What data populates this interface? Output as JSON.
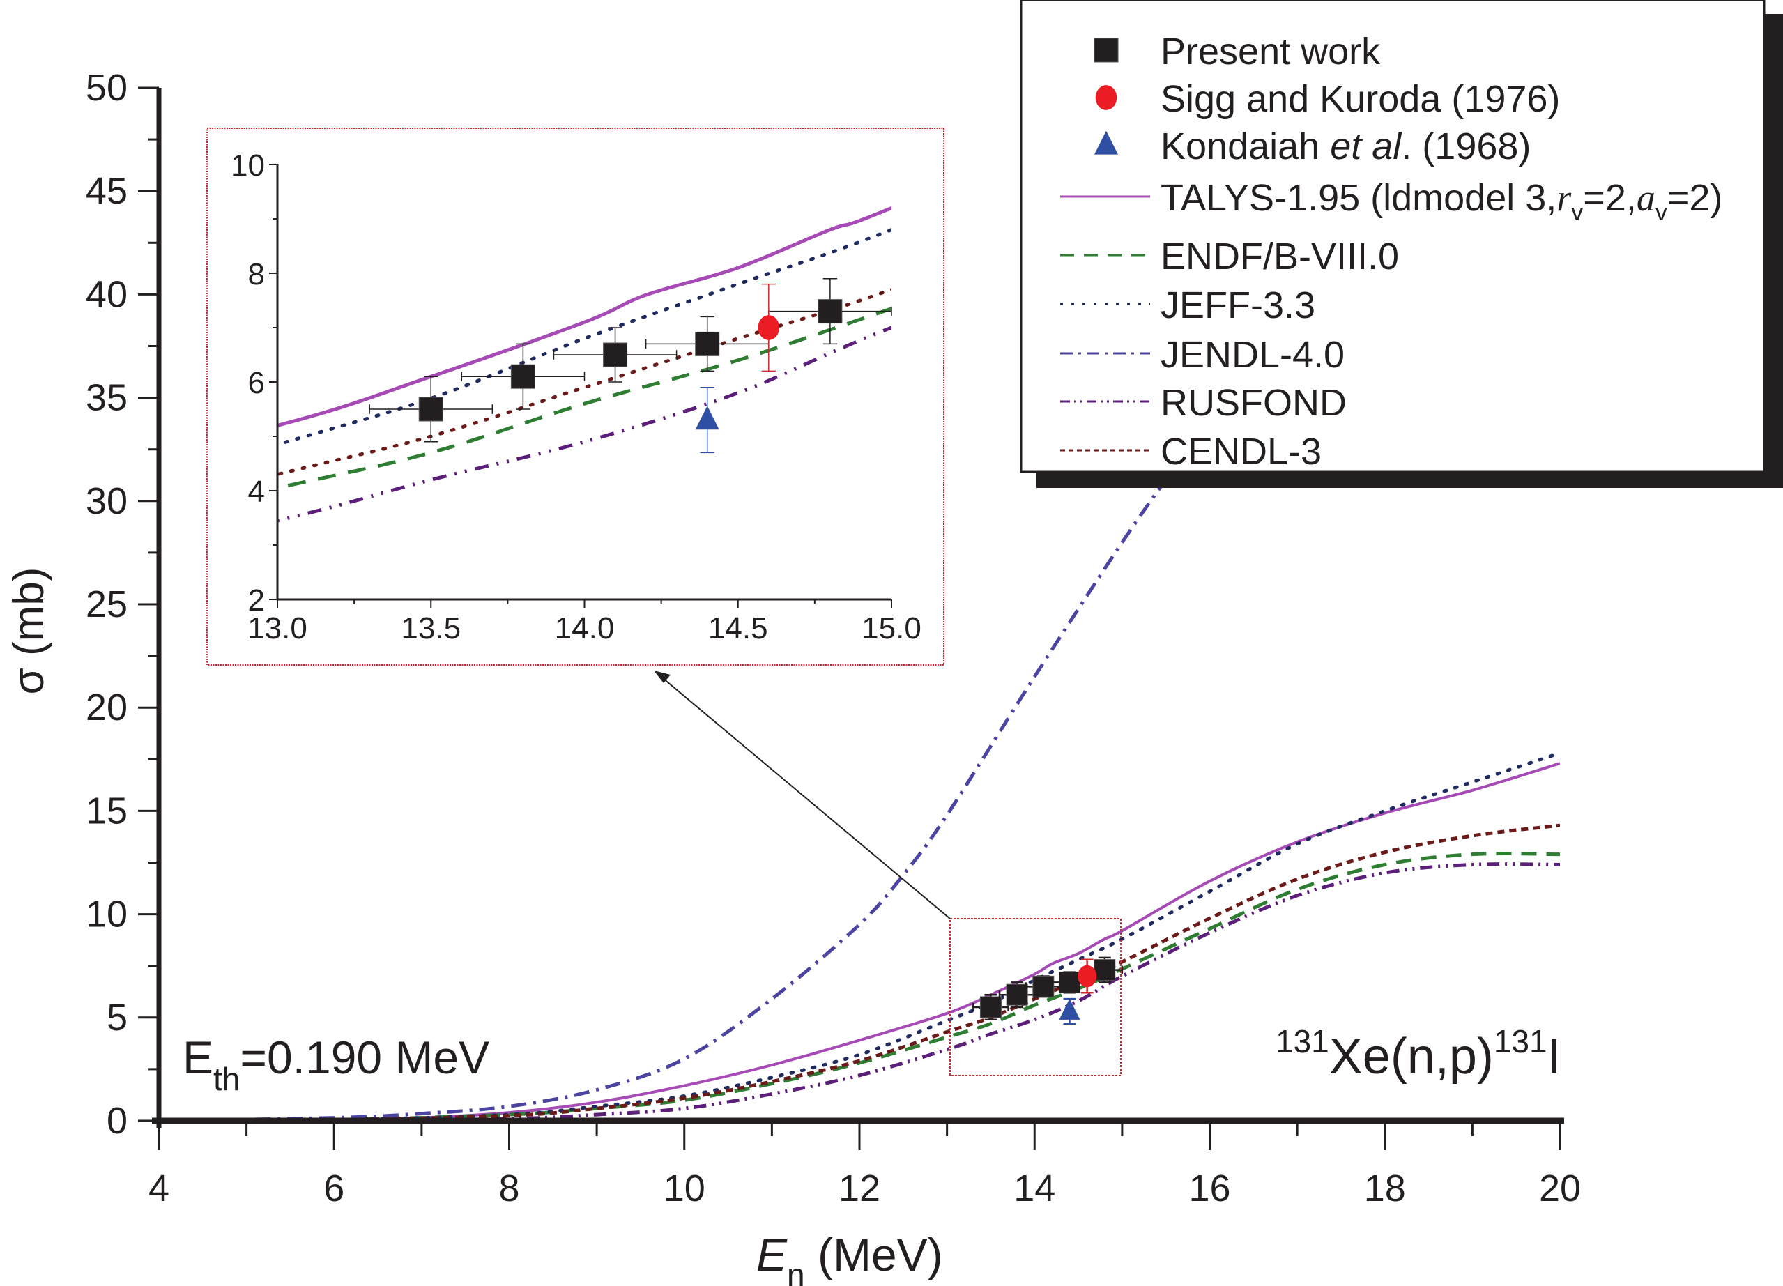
{
  "chart_data": {
    "type": "line",
    "title": "",
    "reaction_label": {
      "pre_sup": "131",
      "main": "Xe(n,p)",
      "post_sup": "131",
      "post": "I"
    },
    "threshold_label": {
      "main": "E",
      "sub": "th",
      "rest": "=0.190 MeV"
    },
    "xlabel": {
      "main": "E",
      "sub": "n",
      "rest": " (MeV)"
    },
    "ylabel": "σ (mb)",
    "xlim": [
      4,
      20
    ],
    "ylim": [
      0,
      50
    ],
    "xticks": [
      "4",
      "6",
      "8",
      "10",
      "12",
      "14",
      "16",
      "18",
      "20"
    ],
    "yticks": [
      "0",
      "5",
      "10",
      "15",
      "20",
      "25",
      "30",
      "35",
      "40",
      "45",
      "50"
    ],
    "grid": false,
    "legend_position": "top-right",
    "legend": [
      {
        "label": "Present work",
        "marker": "square",
        "color": "#231f20"
      },
      {
        "label": "Sigg and Kuroda (1976)",
        "marker": "circle",
        "color": "#ec1c24"
      },
      {
        "label_parts": [
          "Kondaiah ",
          "et al",
          ". (1968)"
        ],
        "label": "Kondaiah et al. (1968)",
        "marker": "triangle",
        "color": "#2e4fa3"
      },
      {
        "label": "TALYS-1.95 (ldmodel 3,rv=2,av=2)",
        "label_parts": [
          "TALYS-1.95 (ldmodel 3,",
          "r",
          "v",
          "=2,",
          "a",
          "v",
          "=2)"
        ],
        "line": "solid",
        "color": "#a64ab5"
      },
      {
        "label": "ENDF/B-VIII.0",
        "line": "dash",
        "color": "#2e7d32"
      },
      {
        "label": "JEFF-3.3",
        "line": "dot",
        "color": "#1f2a5e"
      },
      {
        "label": "JENDL-4.0",
        "line": "dash-dot",
        "color": "#4b44a0"
      },
      {
        "label": "RUSFOND",
        "line": "dash-dot-dot",
        "color": "#5b1f7a"
      },
      {
        "label": "CENDL-3",
        "line": "short-dash",
        "color": "#6b1a1a"
      }
    ],
    "series": [
      {
        "name": "TALYS-1.95",
        "style": "solid",
        "color": "#a64ab5",
        "x": [
          4,
          6,
          7,
          8,
          9,
          10,
          11,
          12,
          13,
          13.5,
          14,
          14.2,
          14.5,
          14.8,
          15,
          16,
          17,
          18,
          19,
          20
        ],
        "y": [
          0,
          0.05,
          0.15,
          0.4,
          0.9,
          1.7,
          2.7,
          3.9,
          5.2,
          6.1,
          7.1,
          7.6,
          8.1,
          8.8,
          9.2,
          11.6,
          13.5,
          14.9,
          16.0,
          17.3
        ]
      },
      {
        "name": "ENDF/B-VIII.0",
        "style": "dash",
        "color": "#2e7d32",
        "x": [
          4,
          6,
          8,
          9,
          10,
          11,
          12,
          13,
          13.5,
          14,
          14.5,
          15,
          16,
          17,
          18,
          19,
          20
        ],
        "y": [
          0,
          0.05,
          0.3,
          0.6,
          1.0,
          1.8,
          2.8,
          4.05,
          4.7,
          5.6,
          6.4,
          7.35,
          9.3,
          11.2,
          12.4,
          12.9,
          12.9
        ]
      },
      {
        "name": "JEFF-3.3",
        "style": "dot",
        "color": "#1f2a5e",
        "x": [
          4,
          6,
          8,
          9,
          10,
          11,
          12,
          13,
          13.5,
          14,
          14.5,
          15,
          16,
          17,
          18,
          19,
          20
        ],
        "y": [
          0,
          0.05,
          0.3,
          0.7,
          1.2,
          2.1,
          3.2,
          4.85,
          5.7,
          6.8,
          7.8,
          8.8,
          11.1,
          13.4,
          15.0,
          16.4,
          17.8
        ]
      },
      {
        "name": "JENDL-4.0",
        "style": "dash-dot",
        "color": "#4b44a0",
        "x": [
          4,
          6,
          7,
          8,
          9,
          10,
          11,
          12,
          12.5,
          13,
          14,
          15,
          15.56
        ],
        "y": [
          0,
          0.15,
          0.35,
          0.7,
          1.5,
          3.0,
          5.9,
          9.5,
          11.9,
          14.8,
          21.5,
          28.0,
          31.4
        ]
      },
      {
        "name": "RUSFOND",
        "style": "dash-dot-dot",
        "color": "#5b1f7a",
        "x": [
          4,
          6,
          8,
          9,
          10,
          11,
          12,
          13,
          13.5,
          14,
          14.5,
          15,
          16,
          17,
          18,
          19,
          20
        ],
        "y": [
          0,
          0.02,
          0.1,
          0.3,
          0.6,
          1.3,
          2.2,
          3.45,
          4.2,
          4.9,
          5.8,
          7.0,
          9.1,
          10.9,
          12.0,
          12.4,
          12.4
        ]
      },
      {
        "name": "CENDL-3",
        "style": "short-dash",
        "color": "#6b1a1a",
        "x": [
          4,
          6,
          8,
          9,
          10,
          11,
          12,
          13,
          13.5,
          14,
          14.5,
          15,
          16,
          17,
          18,
          19,
          20
        ],
        "y": [
          0,
          0.05,
          0.25,
          0.6,
          1.1,
          1.9,
          2.9,
          4.3,
          5.0,
          5.9,
          6.8,
          7.7,
          9.8,
          11.7,
          13.0,
          13.8,
          14.3
        ]
      }
    ],
    "points": [
      {
        "name": "Present work",
        "marker": "square",
        "color": "#231f20",
        "data": [
          {
            "x": 13.5,
            "y": 5.5,
            "yerr": 0.6,
            "xerr": 0.2
          },
          {
            "x": 13.8,
            "y": 6.1,
            "yerr": 0.6,
            "xerr": 0.2
          },
          {
            "x": 14.1,
            "y": 6.5,
            "yerr": 0.5,
            "xerr": 0.2
          },
          {
            "x": 14.4,
            "y": 6.7,
            "yerr": 0.5,
            "xerr": 0.2
          },
          {
            "x": 14.8,
            "y": 7.3,
            "yerr": 0.6,
            "xerr": 0.2
          }
        ]
      },
      {
        "name": "Sigg and Kuroda (1976)",
        "marker": "circle",
        "color": "#ec1c24",
        "data": [
          {
            "x": 14.6,
            "y": 7.0,
            "yerr": 0.8,
            "xerr": 0
          }
        ]
      },
      {
        "name": "Kondaiah et al. (1968)",
        "marker": "triangle",
        "color": "#2e4fa3",
        "data": [
          {
            "x": 14.4,
            "y": 5.3,
            "yerr": 0.6,
            "xerr": 0
          }
        ]
      }
    ],
    "inset": {
      "xlim": [
        13.0,
        15.0
      ],
      "ylim": [
        2,
        10
      ],
      "xticks": [
        "13.0",
        "13.5",
        "14.0",
        "14.5",
        "15.0"
      ],
      "yticks": [
        "2",
        "4",
        "6",
        "8",
        "10"
      ],
      "zoom_region": {
        "x": [
          13.0,
          15.0
        ],
        "y": [
          2.2,
          9.8
        ]
      }
    }
  }
}
